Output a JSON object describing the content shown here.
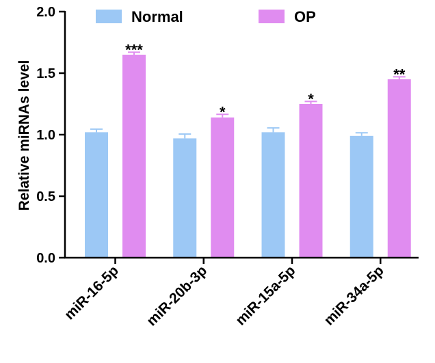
{
  "chart_data": {
    "type": "bar",
    "title": "",
    "xlabel": "",
    "ylabel": "Relative miRNAs level",
    "ylim": [
      0,
      2.0
    ],
    "yticks": [
      "0.0",
      "0.5",
      "1.0",
      "1.5",
      "2.0"
    ],
    "grid": false,
    "legend_position": "top",
    "categories": [
      "miR-16-5p",
      "miR-20b-3p",
      "miR-15a-5p",
      "miR-34a-5p"
    ],
    "series": [
      {
        "name": "Normal",
        "color": "#9cc8f5",
        "values": [
          1.02,
          0.97,
          1.02,
          0.99
        ],
        "errors": [
          0.025,
          0.035,
          0.035,
          0.025
        ]
      },
      {
        "name": "OP",
        "color": "#e08cf0",
        "values": [
          1.65,
          1.14,
          1.25,
          1.45
        ],
        "errors": [
          0.02,
          0.025,
          0.02,
          0.02
        ]
      }
    ],
    "annotations": [
      "***",
      "*",
      "*",
      "**"
    ]
  }
}
